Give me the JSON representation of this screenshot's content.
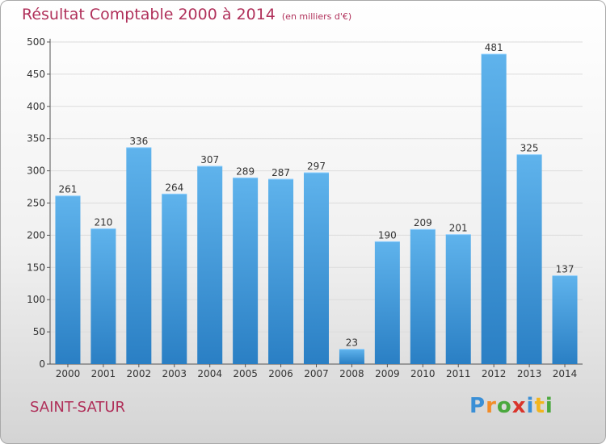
{
  "title": "Résultat Comptable 2000 à 2014",
  "subtitle": "(en milliers d'€)",
  "location": "SAINT-SATUR",
  "logo": {
    "text": "Proxiti",
    "letters": [
      {
        "ch": "P",
        "color": "#3a8fd6"
      },
      {
        "ch": "r",
        "color": "#f28c28"
      },
      {
        "ch": "o",
        "color": "#4aa83d"
      },
      {
        "ch": "x",
        "color": "#d9342b"
      },
      {
        "ch": "i",
        "color": "#3a8fd6"
      },
      {
        "ch": "t",
        "color": "#f2b51d"
      },
      {
        "ch": "i",
        "color": "#4aa83d"
      }
    ]
  },
  "colors": {
    "title": "#b0305a",
    "bar_top": "#5fb3ec",
    "bar_bottom": "#2a7fc4",
    "grid": "#dcdcdc",
    "axis": "#555555"
  },
  "chart_data": {
    "type": "bar",
    "categories": [
      "2000",
      "2001",
      "2002",
      "2003",
      "2004",
      "2005",
      "2006",
      "2007",
      "2008",
      "2009",
      "2010",
      "2011",
      "2012",
      "2013",
      "2014"
    ],
    "values": [
      261,
      210,
      336,
      264,
      307,
      289,
      287,
      297,
      23,
      190,
      209,
      201,
      481,
      325,
      137
    ],
    "yticks": [
      0,
      50,
      100,
      150,
      200,
      250,
      300,
      350,
      400,
      450,
      500
    ],
    "ylim": [
      0,
      500
    ],
    "grid": true,
    "legend": "none"
  }
}
